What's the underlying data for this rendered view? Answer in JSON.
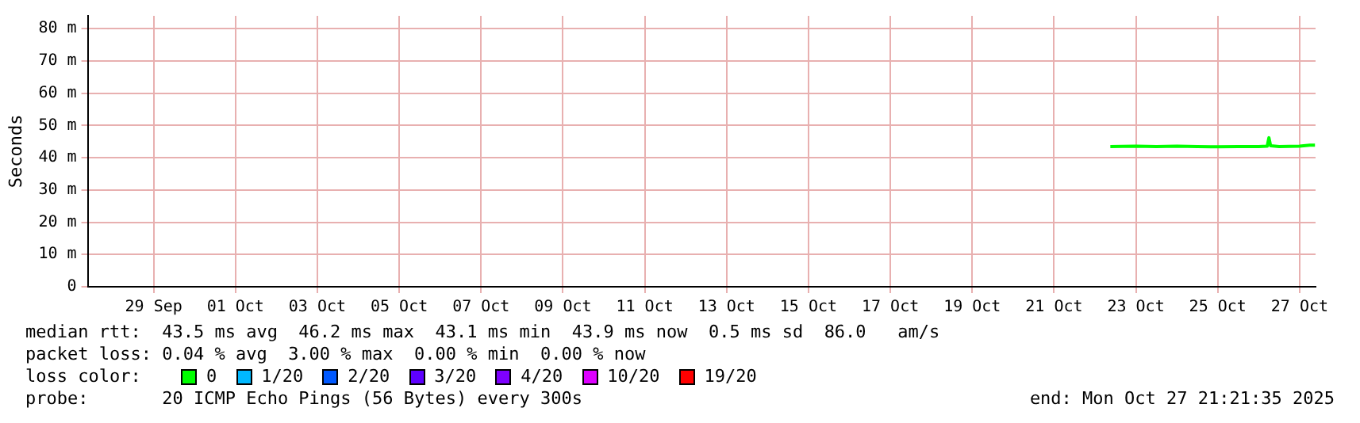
{
  "chart_data": {
    "type": "line",
    "ylabel": "Seconds",
    "legend_title": "loss color:",
    "legend": "bottom",
    "grid": true,
    "marker": "none",
    "line_style": "solid",
    "xlim": [
      "2025-09-27T21:21",
      "2025-10-27T21:21"
    ],
    "xticks": [
      {
        "value": "2025-09-29T12:00",
        "label": "29 Sep"
      },
      {
        "value": "2025-10-01T12:00",
        "label": "01 Oct"
      },
      {
        "value": "2025-10-03T12:00",
        "label": "03 Oct"
      },
      {
        "value": "2025-10-05T12:00",
        "label": "05 Oct"
      },
      {
        "value": "2025-10-07T12:00",
        "label": "07 Oct"
      },
      {
        "value": "2025-10-09T12:00",
        "label": "09 Oct"
      },
      {
        "value": "2025-10-11T12:00",
        "label": "11 Oct"
      },
      {
        "value": "2025-10-13T12:00",
        "label": "13 Oct"
      },
      {
        "value": "2025-10-15T12:00",
        "label": "15 Oct"
      },
      {
        "value": "2025-10-17T12:00",
        "label": "17 Oct"
      },
      {
        "value": "2025-10-19T12:00",
        "label": "19 Oct"
      },
      {
        "value": "2025-10-21T12:00",
        "label": "21 Oct"
      },
      {
        "value": "2025-10-23T12:00",
        "label": "23 Oct"
      },
      {
        "value": "2025-10-25T12:00",
        "label": "25 Oct"
      },
      {
        "value": "2025-10-27T12:00",
        "label": "27 Oct"
      }
    ],
    "ylim": [
      0,
      84
    ],
    "yticks": [
      0,
      {
        "value": 10,
        "label": "10 m"
      },
      {
        "value": 20,
        "label": "20 m"
      },
      {
        "value": 30,
        "label": "30 m"
      },
      {
        "value": 40,
        "label": "40 m"
      },
      {
        "value": 50,
        "label": "50 m"
      },
      {
        "value": 60,
        "label": "60 m"
      },
      {
        "value": 70,
        "label": "70 m"
      },
      {
        "value": 80,
        "label": "80 m"
      }
    ],
    "series": [
      {
        "name": "0",
        "color": "#00ff00",
        "x": [
          "2025-10-22T21:00",
          "2025-10-23T12:00",
          "2025-10-24T00:00",
          "2025-10-24T12:00",
          "2025-10-25T00:00",
          "2025-10-25T12:00",
          "2025-10-26T00:00",
          "2025-10-26T12:00",
          "2025-10-26T17:00",
          "2025-10-26T18:00",
          "2025-10-26T19:00",
          "2025-10-27T00:00",
          "2025-10-27T12:00",
          "2025-10-27T18:00",
          "2025-10-27T21:00"
        ],
        "values": [
          43.5,
          43.6,
          43.5,
          43.6,
          43.5,
          43.4,
          43.5,
          43.5,
          43.6,
          46.2,
          43.7,
          43.5,
          43.6,
          43.9,
          43.9
        ]
      },
      {
        "name": "1/20",
        "color": "#00b8ff"
      },
      {
        "name": "2/20",
        "color": "#0059ff"
      },
      {
        "name": "3/20",
        "color": "#5e00ff"
      },
      {
        "name": "4/20",
        "color": "#7e00ff"
      },
      {
        "name": "10/20",
        "color": "#dd00ff"
      },
      {
        "name": "19/20",
        "color": "#ff0000"
      }
    ],
    "annotations": [
      "median rtt:  43.5 ms avg  46.2 ms max  43.1 ms min  43.9 ms now  0.5 ms sd  86.0   am/s",
      "packet loss: 0.04 % avg  3.00 % max  0.00 % min  0.00 % now",
      "probe:       20 ICMP Echo Pings (56 Bytes) every 300s",
      "end: Mon Oct 27 21:21:35 2025"
    ]
  }
}
